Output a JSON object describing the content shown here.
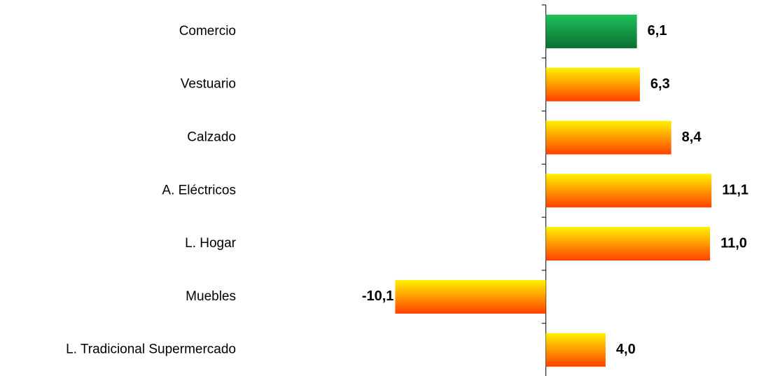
{
  "chart_data": {
    "type": "bar",
    "orientation": "horizontal",
    "categories": [
      "Comercio",
      "Vestuario",
      "Calzado",
      "A. Eléctricos",
      "L. Hogar",
      "Muebles",
      "L. Tradicional Supermercado"
    ],
    "values": [
      6.1,
      6.3,
      8.4,
      11.1,
      11.0,
      -10.1,
      4.0
    ],
    "value_labels": [
      "6,1",
      "6,3",
      "8,4",
      "11,1",
      "11,0",
      "-10,1",
      "4,0"
    ],
    "colors": [
      [
        "#1fc25a",
        "#0a6e32"
      ],
      [
        "#fff200",
        "#ff4000"
      ],
      [
        "#fff200",
        "#ff4000"
      ],
      [
        "#fff200",
        "#ff4000"
      ],
      [
        "#fff200",
        "#ff4000"
      ],
      [
        "#fff200",
        "#ff4000"
      ],
      [
        "#fff200",
        "#ff4000"
      ]
    ],
    "xlim": [
      -15,
      14
    ]
  }
}
